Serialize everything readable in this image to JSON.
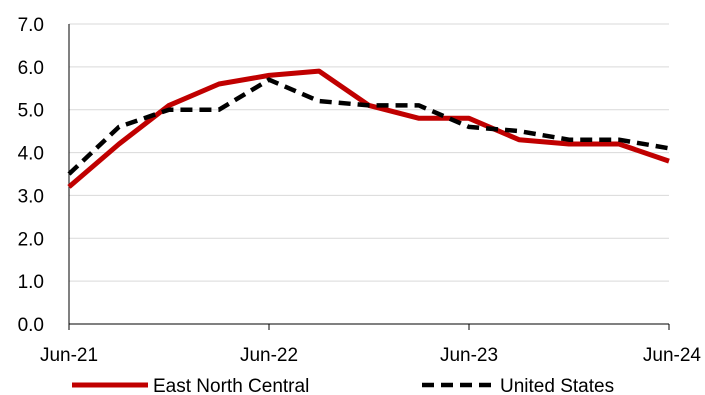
{
  "chart_data": {
    "type": "line",
    "x": [
      "Jun-21",
      "Sep-21",
      "Dec-21",
      "Mar-22",
      "Jun-22",
      "Sep-22",
      "Dec-22",
      "Mar-23",
      "Jun-23",
      "Sep-23",
      "Dec-23",
      "Mar-24",
      "Jun-24"
    ],
    "x_tick_labels": [
      "Jun-21",
      "Jun-22",
      "Jun-23",
      "Jun-24"
    ],
    "series": [
      {
        "name": "East North Central",
        "color": "#C00000",
        "style": "solid",
        "values": [
          3.2,
          4.2,
          5.1,
          5.6,
          5.8,
          5.9,
          5.1,
          4.8,
          4.8,
          4.3,
          4.2,
          4.2,
          3.8
        ]
      },
      {
        "name": "United States",
        "color": "#000000",
        "style": "dashed",
        "values": [
          3.5,
          4.6,
          5.0,
          5.0,
          5.7,
          5.2,
          5.1,
          5.1,
          4.6,
          4.5,
          4.3,
          4.3,
          4.1
        ]
      }
    ],
    "y_ticks": [
      "0.0",
      "1.0",
      "2.0",
      "3.0",
      "4.0",
      "5.0",
      "6.0",
      "7.0"
    ],
    "ylim": [
      0,
      7
    ],
    "grid": true,
    "legend_position": "bottom",
    "title": "",
    "xlabel": "",
    "ylabel": ""
  }
}
